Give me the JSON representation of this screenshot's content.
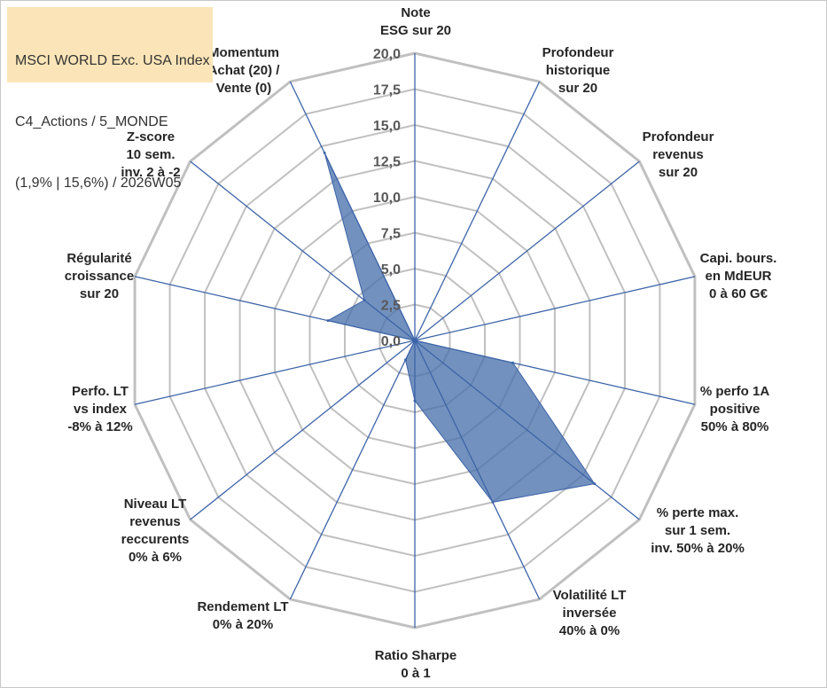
{
  "info_box": {
    "lines": [
      "MSCI WORLD Exc. USA Index",
      "C4_Actions / 5_MONDE",
      "(1,9% | 15,6%) / 2026W05"
    ]
  },
  "colors": {
    "fill": "#4a72ac",
    "stroke": "#3d64a8",
    "grid": "#c0c0c0",
    "info_bg": "#fbe5b8"
  },
  "chart_data": {
    "type": "radar",
    "grid": true,
    "rlim": [
      0,
      20
    ],
    "ticks": [
      "0,0",
      "2,5",
      "5,0",
      "7,5",
      "10,0",
      "12,5",
      "15,0",
      "17,5",
      "20,0"
    ],
    "categories": [
      [
        "Note",
        "ESG sur 20"
      ],
      [
        "Profondeur",
        "historique",
        "sur 20"
      ],
      [
        "Profondeur",
        "revenus",
        "sur 20"
      ],
      [
        "Capi. bours.",
        "en MdEUR",
        "0 à 60 G€"
      ],
      [
        "% perfo 1A",
        "positive",
        "50% à 80%"
      ],
      [
        "% perte max.",
        "sur 1 sem.",
        "inv. 50% à 20%"
      ],
      [
        "Volatilité LT",
        "inversée",
        "40% à 0%"
      ],
      [
        "Ratio Sharpe",
        "0 à 1"
      ],
      [
        "Rendement LT",
        "0% à 20%"
      ],
      [
        "Niveau LT",
        "revenus",
        "reccurents",
        "0% à 6%"
      ],
      [
        "Perfo. LT",
        "vs index",
        "-8% à 12%"
      ],
      [
        "Régularité",
        "croissance",
        "sur 20"
      ],
      [
        "Z-score",
        "10 sem.",
        "inv. 2 à -2"
      ],
      [
        "Momentum",
        "Achat (20) /",
        "Vente (0)"
      ]
    ],
    "series": [
      {
        "values": [
          0,
          0,
          0,
          0,
          7.0,
          16.0,
          12.5,
          4.2,
          1.5,
          0,
          0,
          6.2,
          4.5,
          14.5
        ]
      }
    ]
  }
}
